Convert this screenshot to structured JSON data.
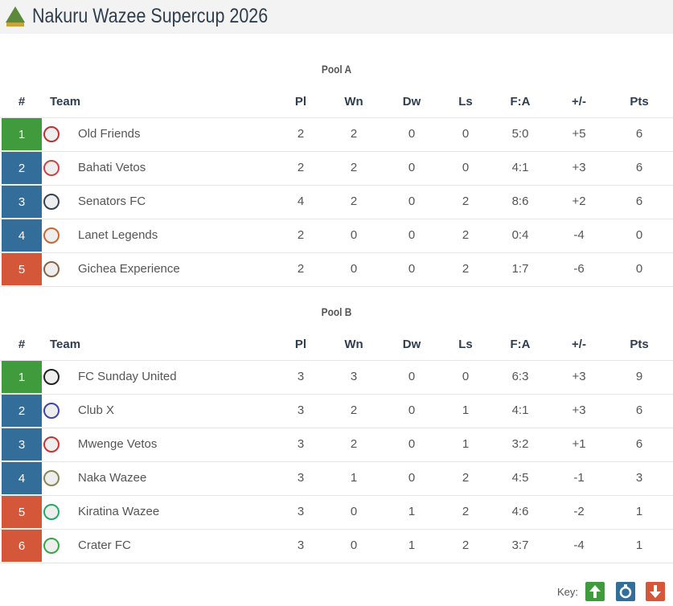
{
  "header": {
    "title": "Nakuru Wazee Supercup 2026"
  },
  "pools": [
    {
      "name": "Pool A",
      "columns": [
        "#",
        "Team",
        "Pl",
        "Wn",
        "Dw",
        "Ls",
        "F:A",
        "+/-",
        "Pts"
      ],
      "rows": [
        {
          "rank": "1",
          "color": "#3f9b3c",
          "cells": [
            "Old Friends",
            "2",
            "2",
            "0",
            "0",
            "5:0",
            "+5",
            "6"
          ]
        },
        {
          "rank": "2",
          "color": "#336e9a",
          "cells": [
            "Bahati Vetos",
            "2",
            "2",
            "0",
            "0",
            "4:1",
            "+3",
            "6"
          ]
        },
        {
          "rank": "3",
          "color": "#336e9a",
          "cells": [
            "Senators FC",
            "4",
            "2",
            "0",
            "2",
            "8:6",
            "+2",
            "6"
          ]
        },
        {
          "rank": "4",
          "color": "#336e9a",
          "cells": [
            "Lanet Legends",
            "2",
            "0",
            "0",
            "2",
            "0:4",
            "-4",
            "0"
          ]
        },
        {
          "rank": "5",
          "color": "#d4573a",
          "cells": [
            "Gichea Experience",
            "2",
            "0",
            "0",
            "2",
            "1:7",
            "-6",
            "0"
          ]
        }
      ]
    },
    {
      "name": "Pool B",
      "columns": [
        "#",
        "Team",
        "Pl",
        "Wn",
        "Dw",
        "Ls",
        "F:A",
        "+/-",
        "Pts"
      ],
      "rows": [
        {
          "rank": "1",
          "color": "#3f9b3c",
          "cells": [
            "FC Sunday United",
            "3",
            "3",
            "0",
            "0",
            "6:3",
            "+3",
            "9"
          ]
        },
        {
          "rank": "2",
          "color": "#336e9a",
          "cells": [
            "Club X",
            "3",
            "2",
            "0",
            "1",
            "4:1",
            "+3",
            "6"
          ]
        },
        {
          "rank": "3",
          "color": "#336e9a",
          "cells": [
            "Mwenge Vetos",
            "3",
            "2",
            "0",
            "1",
            "3:2",
            "+1",
            "6"
          ]
        },
        {
          "rank": "4",
          "color": "#336e9a",
          "cells": [
            "Naka Wazee",
            "3",
            "1",
            "0",
            "2",
            "4:5",
            "-1",
            "3"
          ]
        },
        {
          "rank": "5",
          "color": "#d4573a",
          "cells": [
            "Kiratina Wazee",
            "3",
            "0",
            "1",
            "2",
            "4:6",
            "-2",
            "1"
          ]
        },
        {
          "rank": "6",
          "color": "#d4573a",
          "cells": [
            "Crater FC",
            "3",
            "0",
            "1",
            "2",
            "3:7",
            "-4",
            "1"
          ]
        }
      ]
    }
  ],
  "key": {
    "label": "Key:"
  }
}
